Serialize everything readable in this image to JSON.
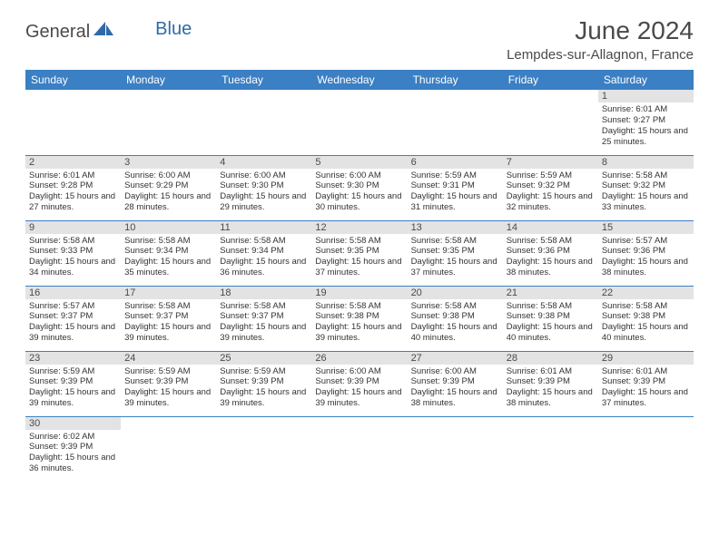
{
  "logo": {
    "part1": "General",
    "part2": "Blue"
  },
  "title": "June 2024",
  "location": "Lempdes-sur-Allagnon, France",
  "colors": {
    "header_bg": "#3b7fc4",
    "header_text": "#ffffff",
    "daynum_bg": "#e3e3e3",
    "border": "#3b7fc4",
    "logo_blue": "#2f6aa8",
    "text": "#4a4a4a"
  },
  "weekdays": [
    "Sunday",
    "Monday",
    "Tuesday",
    "Wednesday",
    "Thursday",
    "Friday",
    "Saturday"
  ],
  "weeks": [
    [
      null,
      null,
      null,
      null,
      null,
      null,
      {
        "n": "1",
        "sunrise": "6:01 AM",
        "sunset": "9:27 PM",
        "dmin": "25"
      }
    ],
    [
      {
        "n": "2",
        "sunrise": "6:01 AM",
        "sunset": "9:28 PM",
        "dmin": "27"
      },
      {
        "n": "3",
        "sunrise": "6:00 AM",
        "sunset": "9:29 PM",
        "dmin": "28"
      },
      {
        "n": "4",
        "sunrise": "6:00 AM",
        "sunset": "9:30 PM",
        "dmin": "29"
      },
      {
        "n": "5",
        "sunrise": "6:00 AM",
        "sunset": "9:30 PM",
        "dmin": "30"
      },
      {
        "n": "6",
        "sunrise": "5:59 AM",
        "sunset": "9:31 PM",
        "dmin": "31"
      },
      {
        "n": "7",
        "sunrise": "5:59 AM",
        "sunset": "9:32 PM",
        "dmin": "32"
      },
      {
        "n": "8",
        "sunrise": "5:58 AM",
        "sunset": "9:32 PM",
        "dmin": "33"
      }
    ],
    [
      {
        "n": "9",
        "sunrise": "5:58 AM",
        "sunset": "9:33 PM",
        "dmin": "34"
      },
      {
        "n": "10",
        "sunrise": "5:58 AM",
        "sunset": "9:34 PM",
        "dmin": "35"
      },
      {
        "n": "11",
        "sunrise": "5:58 AM",
        "sunset": "9:34 PM",
        "dmin": "36"
      },
      {
        "n": "12",
        "sunrise": "5:58 AM",
        "sunset": "9:35 PM",
        "dmin": "37"
      },
      {
        "n": "13",
        "sunrise": "5:58 AM",
        "sunset": "9:35 PM",
        "dmin": "37"
      },
      {
        "n": "14",
        "sunrise": "5:58 AM",
        "sunset": "9:36 PM",
        "dmin": "38"
      },
      {
        "n": "15",
        "sunrise": "5:57 AM",
        "sunset": "9:36 PM",
        "dmin": "38"
      }
    ],
    [
      {
        "n": "16",
        "sunrise": "5:57 AM",
        "sunset": "9:37 PM",
        "dmin": "39"
      },
      {
        "n": "17",
        "sunrise": "5:58 AM",
        "sunset": "9:37 PM",
        "dmin": "39"
      },
      {
        "n": "18",
        "sunrise": "5:58 AM",
        "sunset": "9:37 PM",
        "dmin": "39"
      },
      {
        "n": "19",
        "sunrise": "5:58 AM",
        "sunset": "9:38 PM",
        "dmin": "39"
      },
      {
        "n": "20",
        "sunrise": "5:58 AM",
        "sunset": "9:38 PM",
        "dmin": "40"
      },
      {
        "n": "21",
        "sunrise": "5:58 AM",
        "sunset": "9:38 PM",
        "dmin": "40"
      },
      {
        "n": "22",
        "sunrise": "5:58 AM",
        "sunset": "9:38 PM",
        "dmin": "40"
      }
    ],
    [
      {
        "n": "23",
        "sunrise": "5:59 AM",
        "sunset": "9:39 PM",
        "dmin": "39"
      },
      {
        "n": "24",
        "sunrise": "5:59 AM",
        "sunset": "9:39 PM",
        "dmin": "39"
      },
      {
        "n": "25",
        "sunrise": "5:59 AM",
        "sunset": "9:39 PM",
        "dmin": "39"
      },
      {
        "n": "26",
        "sunrise": "6:00 AM",
        "sunset": "9:39 PM",
        "dmin": "39"
      },
      {
        "n": "27",
        "sunrise": "6:00 AM",
        "sunset": "9:39 PM",
        "dmin": "38"
      },
      {
        "n": "28",
        "sunrise": "6:01 AM",
        "sunset": "9:39 PM",
        "dmin": "38"
      },
      {
        "n": "29",
        "sunrise": "6:01 AM",
        "sunset": "9:39 PM",
        "dmin": "37"
      }
    ],
    [
      {
        "n": "30",
        "sunrise": "6:02 AM",
        "sunset": "9:39 PM",
        "dmin": "36"
      },
      null,
      null,
      null,
      null,
      null,
      null
    ]
  ],
  "labels": {
    "sunrise": "Sunrise:",
    "sunset": "Sunset:",
    "daylight_prefix": "Daylight: 15 hours and",
    "daylight_suffix": "minutes."
  }
}
